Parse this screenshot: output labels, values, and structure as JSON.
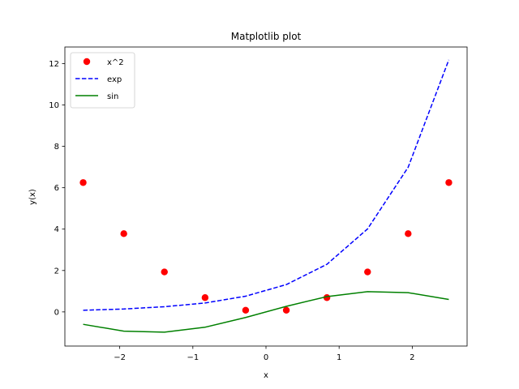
{
  "chart_data": {
    "type": "line",
    "title": "Matplotlib plot",
    "xlabel": "x",
    "ylabel": "y(x)",
    "xlim": [
      -2.75,
      2.75
    ],
    "ylim": [
      -1.65,
      12.8
    ],
    "x_ticks": [
      -2,
      -1,
      0,
      1,
      2
    ],
    "x_tick_labels": [
      "−2",
      "−1",
      "0",
      "1",
      "2"
    ],
    "y_ticks": [
      0,
      2,
      4,
      6,
      8,
      10,
      12
    ],
    "y_tick_labels": [
      "0",
      "2",
      "4",
      "6",
      "8",
      "10",
      "12"
    ],
    "grid": false,
    "legend_position": "upper-left",
    "x": [
      -2.5,
      -1.944,
      -1.389,
      -0.833,
      -0.278,
      0.278,
      0.833,
      1.389,
      1.944,
      2.5
    ],
    "series": [
      {
        "name": "x^2",
        "kind": "scatter",
        "marker": "circle",
        "color": "#ff0000",
        "values": [
          6.25,
          3.78,
          1.93,
          0.69,
          0.08,
          0.08,
          0.69,
          1.93,
          3.78,
          6.25
        ]
      },
      {
        "name": "exp",
        "kind": "line",
        "style": "dashed",
        "color": "#0000ff",
        "values": [
          0.08,
          0.14,
          0.25,
          0.43,
          0.76,
          1.32,
          2.3,
          4.01,
          6.99,
          12.18
        ]
      },
      {
        "name": "sin",
        "kind": "line",
        "style": "solid",
        "color": "#008000",
        "values": [
          -0.6,
          -0.93,
          -0.98,
          -0.74,
          -0.27,
          0.27,
          0.74,
          0.98,
          0.93,
          0.6
        ]
      }
    ]
  }
}
